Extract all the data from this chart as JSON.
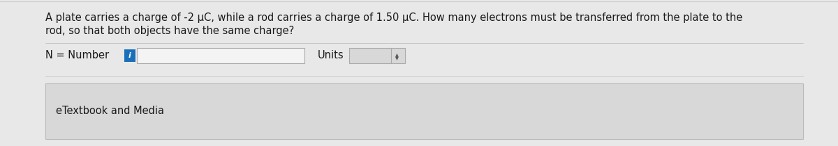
{
  "bg_color": "#e8e8e8",
  "question_text_line1": "A plate carries a charge of -2 μC, while a rod carries a charge of 1.50 μC. How many electrons must be transferred from the plate to the",
  "question_text_line2": "rod, so that both objects have the same charge?",
  "label_n": "N = Number",
  "label_units": "Units",
  "etextbook_label": "eTextbook and Media",
  "input_box_color": "#f4f4f4",
  "input_box_border": "#aaaaaa",
  "info_icon_color": "#1a6fba",
  "units_box_color": "#d8d8d8",
  "units_box_border": "#aaaaaa",
  "units_arrow_color": "#555555",
  "font_size_question": 10.5,
  "font_size_label": 10.5,
  "font_size_etextbook": 10.5,
  "text_color": "#1a1a1a",
  "etextbook_bg": "#d8d8d8",
  "etextbook_border": "#b8b8b8",
  "separator_color": "#bbbbbb"
}
